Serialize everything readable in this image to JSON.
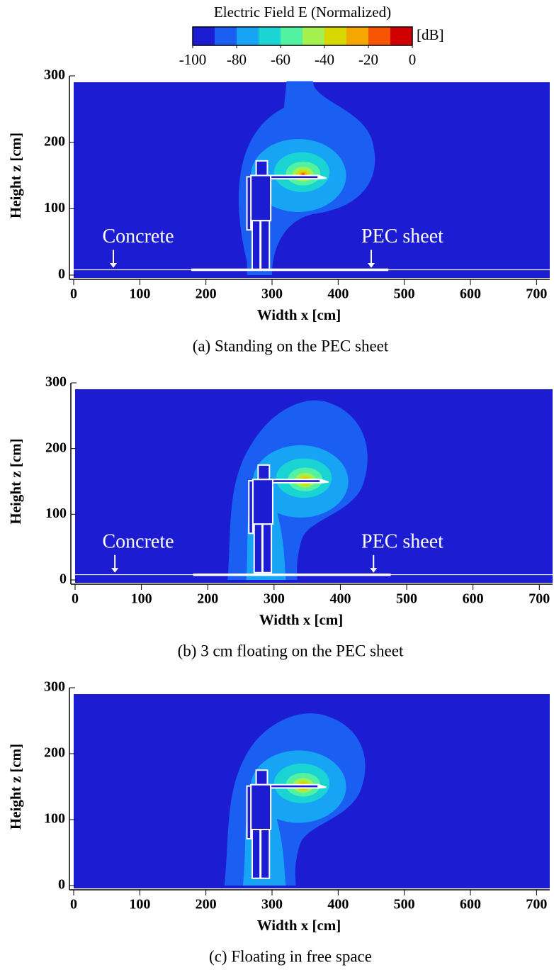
{
  "chart_data": [
    {
      "type": "colorbar",
      "title": "Electric Field E (Normalized)",
      "unit": "[dB]",
      "levels": [
        -100,
        -90,
        -80,
        -70,
        -60,
        -50,
        -40,
        -30,
        -20,
        -10,
        0
      ],
      "colors": [
        "#1c1cd2",
        "#1a5ef2",
        "#18a4f4",
        "#1ad4d4",
        "#52f2a2",
        "#a4f04e",
        "#d8d800",
        "#f6a600",
        "#f65400",
        "#d00000"
      ],
      "ticks": [
        -100,
        -80,
        -60,
        -40,
        -20,
        0
      ]
    },
    {
      "type": "contour",
      "caption": "(a) Standing on the PEC sheet",
      "xlabel": "Width x [cm]",
      "ylabel": "Height z [cm]",
      "xlim": [
        0,
        720
      ],
      "ylim": [
        0,
        300
      ],
      "xticks": [
        0,
        100,
        200,
        300,
        400,
        500,
        600,
        700
      ],
      "yticks": [
        0,
        100,
        200,
        300
      ],
      "annotations": [
        "Concrete",
        "PEC sheet"
      ]
    },
    {
      "type": "contour",
      "caption": "(b) 3 cm floating on the PEC sheet",
      "xlabel": "Width x [cm]",
      "ylabel": "Height z [cm]",
      "xlim": [
        0,
        720
      ],
      "ylim": [
        0,
        300
      ],
      "xticks": [
        0,
        100,
        200,
        300,
        400,
        500,
        600,
        700
      ],
      "yticks": [
        0,
        100,
        200,
        300
      ],
      "annotations": [
        "Concrete",
        "PEC sheet"
      ]
    },
    {
      "type": "contour",
      "caption": "(c) Floating in free space",
      "xlabel": "Width x [cm]",
      "ylabel": "Height z [cm]",
      "xlim": [
        0,
        720
      ],
      "ylim": [
        0,
        300
      ],
      "xticks": [
        0,
        100,
        200,
        300,
        400,
        500,
        600,
        700
      ],
      "yticks": [
        0,
        100,
        200,
        300
      ]
    }
  ]
}
